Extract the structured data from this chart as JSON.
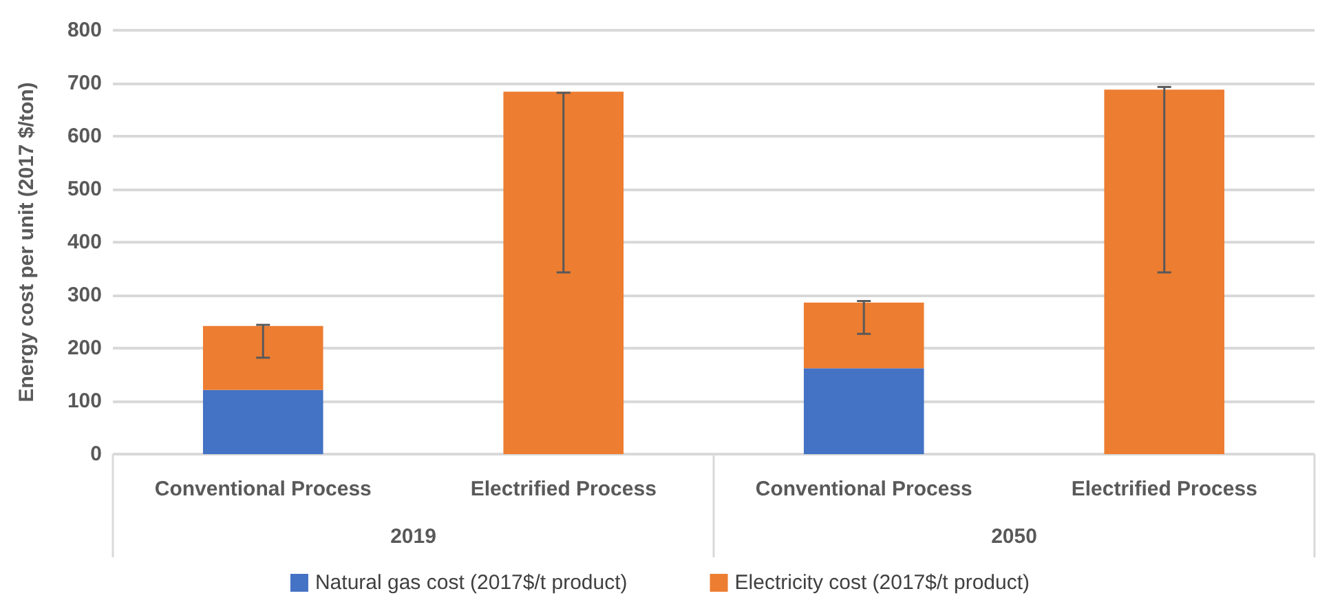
{
  "chart_data": {
    "type": "bar",
    "stacked": true,
    "ylabel": "Energy cost per unit (2017 $/ton)",
    "categories": [
      "Conventional Process",
      "Electrified Process",
      "Conventional Process",
      "Electrified Process"
    ],
    "series": [
      {
        "name": "Natural gas cost (2017$/t product)",
        "color": "#4472c4",
        "values": [
          121,
          0,
          162,
          0
        ]
      },
      {
        "name": "Electricity cost (2017$/t product)",
        "color": "#ed7d31",
        "values": [
          121,
          684,
          124,
          688
        ],
        "errors": [
          [
            182,
            244
          ],
          [
            343,
            682
          ],
          [
            227,
            289
          ],
          [
            343,
            693
          ]
        ]
      }
    ],
    "annotations": [
      "2019",
      "2050"
    ],
    "ylim": [
      0,
      800
    ],
    "yticks": [
      0,
      100,
      200,
      300,
      400,
      500,
      600,
      700,
      800
    ],
    "grid": "y",
    "legend": "bottom"
  }
}
